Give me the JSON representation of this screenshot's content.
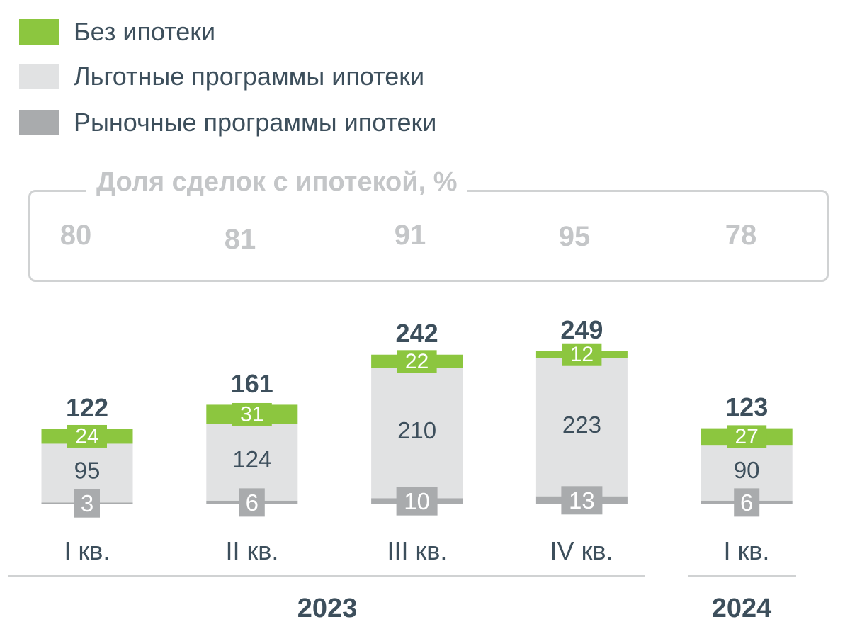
{
  "legend": [
    {
      "label": "Без ипотеки",
      "color": "#8cc63f"
    },
    {
      "label": "Льготные программы ипотеки",
      "color": "#e1e2e3"
    },
    {
      "label": "Рыночные программы ипотеки",
      "color": "#a9abad"
    }
  ],
  "share": {
    "title": "Доля сделок с ипотекой, %",
    "values": [
      "80",
      "81",
      "91",
      "95",
      "78"
    ]
  },
  "chart_data": {
    "type": "bar",
    "stacked": true,
    "categories": [
      "I кв.",
      "II кв.",
      "III кв.",
      "IV кв.",
      "I кв."
    ],
    "series": [
      {
        "name": "Рыночные программы ипотеки",
        "values": [
          3,
          6,
          10,
          13,
          6
        ],
        "color": "#a9abad"
      },
      {
        "name": "Льготные программы ипотеки",
        "values": [
          95,
          124,
          210,
          223,
          90
        ],
        "color": "#e1e2e3"
      },
      {
        "name": "Без ипотеки",
        "values": [
          24,
          31,
          22,
          12,
          27
        ],
        "color": "#8cc63f"
      }
    ],
    "totals": [
      122,
      161,
      242,
      249,
      123
    ],
    "years": [
      {
        "label": "2023",
        "categories": 4
      },
      {
        "label": "2024",
        "categories": 1
      }
    ],
    "colors": {
      "total_label": "#3d4f5c",
      "value_label": "#3d4f5c",
      "badge_text": "#ffffff"
    }
  }
}
